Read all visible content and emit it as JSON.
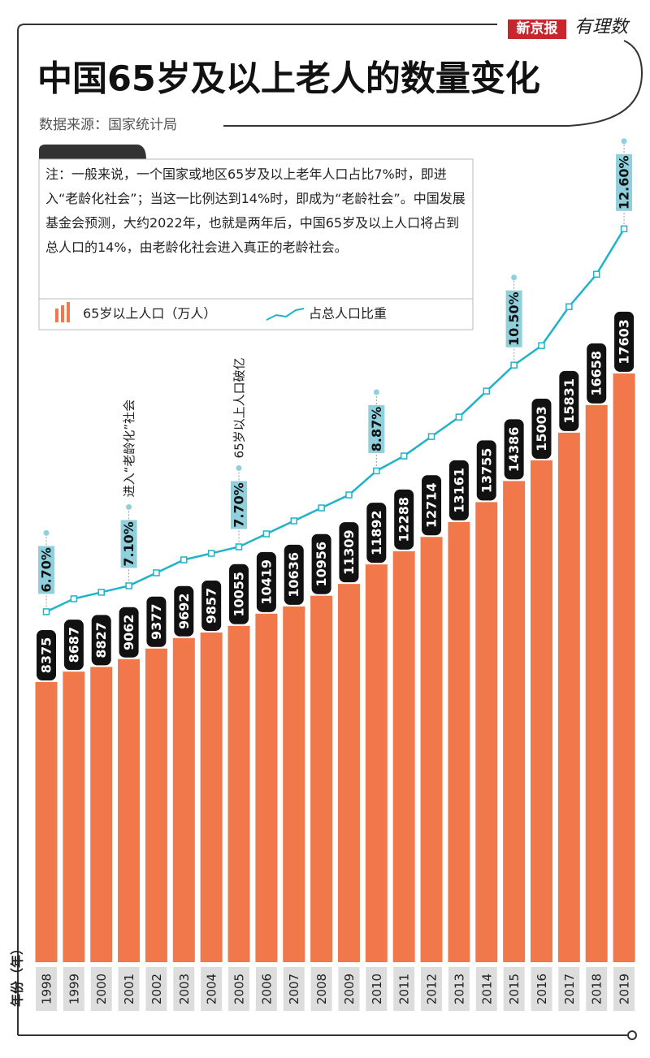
{
  "chart_data": {
    "type": "bar",
    "brand": [
      "新京报",
      "有理数"
    ],
    "title": "中国65岁及以上老人的数量变化",
    "source": "数据来源：国家统计局",
    "note": "注：一般来说，一个国家或地区65岁及以上老年人口占比7%时，即进入“老龄化社会”；当这一比例达到14%时，即成为“老龄社会”。中国发展基金会预测，大约2022年，也就是两年后，中国65岁及以上人口将占到总人口的14%，由老龄化社会进入真正的老龄社会。",
    "x_label": "年份（年）",
    "categories": [
      "1998",
      "1999",
      "2000",
      "2001",
      "2002",
      "2003",
      "2004",
      "2005",
      "2006",
      "2007",
      "2008",
      "2009",
      "2010",
      "2011",
      "2012",
      "2013",
      "2014",
      "2015",
      "2016",
      "2017",
      "2018",
      "2019"
    ],
    "series": [
      {
        "name": "65岁以上人口（万人）",
        "type": "bar",
        "color": "#f0784a",
        "values": [
          8375,
          8687,
          8827,
          9062,
          9377,
          9692,
          9857,
          10055,
          10419,
          10636,
          10956,
          11309,
          11892,
          12288,
          12714,
          13161,
          13755,
          14386,
          15003,
          15831,
          16658,
          17603
        ]
      },
      {
        "name": "占总人口比重",
        "type": "line",
        "axis": "y2",
        "color": "#1fb3c7",
        "values": [
          6.7,
          6.9,
          7.0,
          7.1,
          7.3,
          7.5,
          7.6,
          7.7,
          7.9,
          8.1,
          8.3,
          8.5,
          8.87,
          9.1,
          9.4,
          9.7,
          10.1,
          10.5,
          10.8,
          11.4,
          11.9,
          12.6
        ],
        "value_labels": [
          "6.70%",
          null,
          null,
          "7.10%",
          null,
          null,
          null,
          "7.70%",
          null,
          null,
          null,
          null,
          "8.87%",
          null,
          null,
          null,
          null,
          "10.50%",
          null,
          null,
          null,
          "12.60%"
        ]
      }
    ],
    "annotations": [
      {
        "x": "2001",
        "text": "进入“老龄化”社会"
      },
      {
        "x": "2005",
        "text": "65岁以上人口破亿"
      }
    ],
    "ylim": [
      0,
      26000
    ],
    "y2lim": [
      1.3,
      14.7
    ]
  }
}
